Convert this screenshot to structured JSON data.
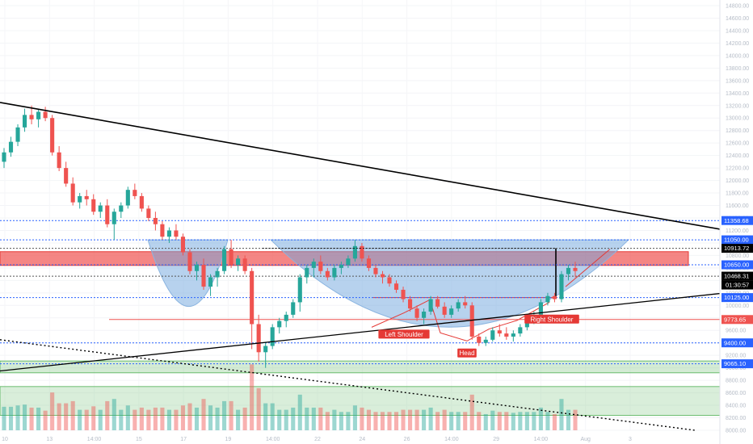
{
  "chart_data": {
    "type": "candlestick",
    "title": "",
    "ylim": [
      8000,
      14800
    ],
    "y_ticks": [
      14800,
      14600,
      14400,
      14200,
      14000,
      13800,
      13600,
      13400,
      13200,
      13000,
      12800,
      12600,
      12400,
      12200,
      12000,
      11800,
      11600,
      11400,
      11200,
      11000,
      10800,
      10600,
      10400,
      10200,
      10000,
      9800,
      9600,
      9400,
      9200,
      9000,
      8800,
      8600,
      8400,
      8200,
      8000
    ],
    "y_tick_labels": [
      "14800.00",
      "14600.00",
      "14400.00",
      "14200.00",
      "14000.00",
      "13800.00",
      "13600.00",
      "13400.00",
      "13200.00",
      "13000.00",
      "12800.00",
      "12600.00",
      "12400.00",
      "12200.00",
      "12000.00",
      "11800.00",
      "11600.00",
      "11400.00",
      "11200.00",
      "11000.00",
      "10800.00",
      "10600.00",
      "10400.00",
      "10200.00",
      "10000.00",
      "9800.00",
      "9600.00",
      "9400.00",
      "9200.00",
      "9000.00",
      "8800.00",
      "8600.00",
      "8400.00",
      "8200.00",
      "8000.00"
    ],
    "x_tick_labels": [
      "10",
      "13",
      "14:00",
      "15",
      "17",
      "19",
      "14:00",
      "22",
      "24",
      "26",
      "14:00",
      "29",
      "14:00",
      "Aug",
      "3"
    ],
    "price_levels": [
      {
        "value": 11358.68,
        "label": "11358.68",
        "color": "#2962ff"
      },
      {
        "value": 11050.0,
        "label": "11050.00",
        "color": "#2962ff"
      },
      {
        "value": 10913.72,
        "label": "10913.72",
        "color": "#000000"
      },
      {
        "value": 10650.0,
        "label": "10650.00",
        "color": "#2962ff"
      },
      {
        "value": 10468.31,
        "label": "10468.31",
        "color": "#000000"
      },
      {
        "value": 10125.0,
        "label": "10125.00",
        "color": "#2962ff"
      },
      {
        "value": 9773.65,
        "label": "9773.65",
        "color": "#ef5350"
      },
      {
        "value": 9400.0,
        "label": "9400.00",
        "color": "#2962ff"
      },
      {
        "value": 9065.1,
        "label": "9065.10",
        "color": "#2962ff"
      }
    ],
    "countdown": "01:30:57",
    "annotations": [
      "Left Shoulder",
      "Head",
      "Right Shoulder"
    ],
    "series": [
      {
        "name": "",
        "ohlc": [
          [
            12300,
            12520,
            12200,
            12450
          ],
          [
            12450,
            12700,
            12380,
            12620
          ],
          [
            12620,
            12900,
            12550,
            12850
          ],
          [
            12850,
            13150,
            12780,
            13050
          ],
          [
            13050,
            13200,
            12900,
            12980
          ],
          [
            12980,
            13150,
            12850,
            13100
          ],
          [
            13100,
            13180,
            12950,
            13000
          ],
          [
            13000,
            13050,
            12400,
            12450
          ],
          [
            12450,
            12550,
            12150,
            12200
          ],
          [
            12200,
            12300,
            11900,
            11950
          ],
          [
            11950,
            12050,
            11600,
            11650
          ],
          [
            11650,
            11800,
            11550,
            11750
          ],
          [
            11750,
            11850,
            11600,
            11700
          ],
          [
            11700,
            11780,
            11450,
            11500
          ],
          [
            11500,
            11650,
            11400,
            11600
          ],
          [
            11600,
            11700,
            11250,
            11300
          ],
          [
            11300,
            11550,
            11050,
            11500
          ],
          [
            11500,
            11650,
            11400,
            11600
          ],
          [
            11600,
            11900,
            11550,
            11850
          ],
          [
            11850,
            11950,
            11700,
            11750
          ],
          [
            11750,
            11800,
            11500,
            11550
          ],
          [
            11550,
            11600,
            11350,
            11400
          ],
          [
            11400,
            11500,
            11200,
            11300
          ],
          [
            11300,
            11350,
            11050,
            11100
          ],
          [
            11100,
            11250,
            11000,
            11200
          ],
          [
            11200,
            11300,
            11050,
            11100
          ],
          [
            11100,
            11150,
            10800,
            10850
          ],
          [
            10850,
            10900,
            10500,
            10550
          ],
          [
            10550,
            10700,
            10400,
            10650
          ],
          [
            10650,
            10750,
            10250,
            10300
          ],
          [
            10300,
            10500,
            10150,
            10450
          ],
          [
            10450,
            10600,
            10300,
            10550
          ],
          [
            10550,
            10950,
            10500,
            10900
          ],
          [
            10900,
            11050,
            10600,
            10650
          ],
          [
            10650,
            10800,
            10550,
            10750
          ],
          [
            10750,
            10800,
            10500,
            10550
          ],
          [
            10550,
            10600,
            9300,
            9700
          ],
          [
            9700,
            9850,
            9100,
            9250
          ],
          [
            9250,
            9400,
            9000,
            9350
          ],
          [
            9350,
            9700,
            9300,
            9650
          ],
          [
            9650,
            9800,
            9550,
            9750
          ],
          [
            9750,
            9900,
            9650,
            9850
          ],
          [
            9850,
            10100,
            9800,
            10050
          ],
          [
            10050,
            10500,
            9900,
            10450
          ],
          [
            10450,
            10650,
            10350,
            10600
          ],
          [
            10600,
            10750,
            10450,
            10700
          ],
          [
            10700,
            10800,
            10500,
            10550
          ],
          [
            10550,
            10600,
            10400,
            10450
          ],
          [
            10450,
            10650,
            10400,
            10600
          ],
          [
            10600,
            10700,
            10500,
            10650
          ],
          [
            10650,
            10800,
            10600,
            10750
          ],
          [
            10750,
            11050,
            10700,
            10950
          ],
          [
            10950,
            11000,
            10700,
            10750
          ],
          [
            10750,
            10800,
            10550,
            10600
          ],
          [
            10600,
            10650,
            10450,
            10500
          ],
          [
            10500,
            10550,
            10350,
            10450
          ],
          [
            10450,
            10500,
            10300,
            10350
          ],
          [
            10350,
            10400,
            10200,
            10250
          ],
          [
            10250,
            10300,
            10050,
            10100
          ],
          [
            10100,
            10150,
            9900,
            9950
          ],
          [
            9950,
            10000,
            9750,
            9800
          ],
          [
            9800,
            9950,
            9700,
            9900
          ],
          [
            9900,
            10150,
            9850,
            10100
          ],
          [
            10100,
            10150,
            9950,
            9980
          ],
          [
            9980,
            10050,
            9800,
            9850
          ],
          [
            9850,
            10000,
            9800,
            9950
          ],
          [
            9950,
            10100,
            9900,
            10050
          ],
          [
            10050,
            10150,
            9950,
            10000
          ],
          [
            10000,
            10050,
            9450,
            9500
          ],
          [
            9500,
            9550,
            9350,
            9400
          ],
          [
            9400,
            9500,
            9350,
            9450
          ],
          [
            9450,
            9650,
            9420,
            9600
          ],
          [
            9600,
            9700,
            9500,
            9550
          ],
          [
            9550,
            9650,
            9450,
            9500
          ],
          [
            9500,
            9600,
            9420,
            9550
          ],
          [
            9550,
            9700,
            9500,
            9650
          ],
          [
            9650,
            9800,
            9600,
            9750
          ],
          [
            9750,
            9900,
            9700,
            9850
          ],
          [
            9850,
            10100,
            9800,
            10050
          ],
          [
            10050,
            10200,
            10000,
            10150
          ],
          [
            10150,
            10200,
            10050,
            10100
          ],
          [
            10100,
            10550,
            10050,
            10500
          ],
          [
            10500,
            10650,
            10400,
            10600
          ],
          [
            10600,
            10700,
            10450,
            10550
          ]
        ]
      }
    ]
  }
}
